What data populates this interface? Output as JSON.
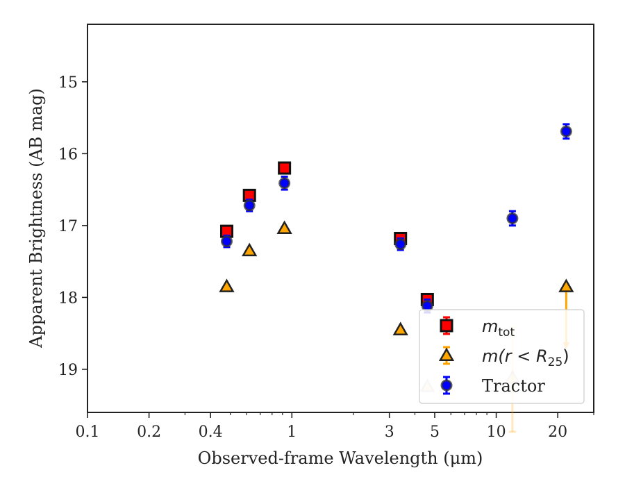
{
  "chart_data": {
    "type": "scatter",
    "xlabel": "Observed-frame Wavelength (μm)",
    "ylabel": "Apparent Brightness (AB mag)",
    "x_scale": "log",
    "y_inverted": true,
    "xlim": [
      0.1,
      30
    ],
    "ylim": [
      19.6,
      14.2
    ],
    "x_ticks": [
      {
        "value": 0.1,
        "label": "0.1"
      },
      {
        "value": 0.2,
        "label": "0.2"
      },
      {
        "value": 0.4,
        "label": "0.4"
      },
      {
        "value": 1,
        "label": "1"
      },
      {
        "value": 3,
        "label": "3"
      },
      {
        "value": 5,
        "label": "5"
      },
      {
        "value": 10,
        "label": "10"
      },
      {
        "value": 20,
        "label": "20"
      }
    ],
    "y_ticks": [
      {
        "value": 15,
        "label": "15"
      },
      {
        "value": 16,
        "label": "16"
      },
      {
        "value": 17,
        "label": "17"
      },
      {
        "value": 18,
        "label": "18"
      },
      {
        "value": 19,
        "label": "19"
      }
    ],
    "legend_position": "lower-right",
    "series": [
      {
        "name": "m_tot",
        "legend_label": "m",
        "legend_subscript": "tot",
        "marker": "square",
        "color": "#ff0000",
        "edge_color": "#111111",
        "error_color": "#ff0000",
        "points": [
          {
            "x": 0.48,
            "y": 17.08,
            "yerr": 0.07
          },
          {
            "x": 0.62,
            "y": 16.58,
            "yerr": 0.07
          },
          {
            "x": 0.92,
            "y": 16.2,
            "yerr": 0.07
          },
          {
            "x": 3.4,
            "y": 17.18,
            "yerr": 0.07
          },
          {
            "x": 4.6,
            "y": 18.03,
            "yerr": 0.07
          }
        ]
      },
      {
        "name": "m(r<R25)",
        "legend_label": "m(r < R",
        "legend_subscript": "25",
        "legend_suffix": ")",
        "marker": "triangle",
        "color": "#ffa500",
        "edge_color": "#222222",
        "error_color": "#ffa500",
        "points": [
          {
            "x": 0.48,
            "y": 17.85,
            "alpha": 1
          },
          {
            "x": 0.62,
            "y": 17.35,
            "alpha": 1
          },
          {
            "x": 0.92,
            "y": 17.04,
            "alpha": 1
          },
          {
            "x": 3.4,
            "y": 18.45,
            "alpha": 1
          },
          {
            "x": 4.6,
            "y": 19.24,
            "alpha": 0.25
          },
          {
            "x": 12,
            "y": 19.12,
            "alpha": 0.25,
            "yerr_low": 0.75,
            "yerr_high": 0.7
          },
          {
            "x": 22,
            "y": 17.85,
            "alpha": 1,
            "upper_limit": true,
            "arrow_to": 18.7
          }
        ]
      },
      {
        "name": "Tractor",
        "legend_label": "Tractor",
        "marker": "circle",
        "color": "#0000ff",
        "edge_color": "#333333",
        "error_color": "#0000ff",
        "points": [
          {
            "x": 0.48,
            "y": 17.22,
            "yerr": 0.08
          },
          {
            "x": 0.62,
            "y": 16.72,
            "yerr": 0.08
          },
          {
            "x": 0.92,
            "y": 16.41,
            "yerr": 0.09
          },
          {
            "x": 3.4,
            "y": 17.26,
            "yerr": 0.08
          },
          {
            "x": 4.6,
            "y": 18.12,
            "yerr": 0.09
          },
          {
            "x": 12,
            "y": 16.9,
            "yerr": 0.1
          },
          {
            "x": 22,
            "y": 15.69,
            "yerr": 0.1
          }
        ]
      }
    ]
  }
}
